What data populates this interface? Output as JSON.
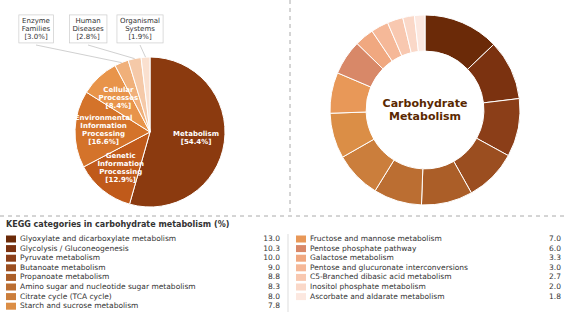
{
  "chart_data": [
    {
      "type": "pie",
      "categories": [
        "Metabolism",
        "Genetic\nInformation\nProcessing",
        "Environmental\nInformation\nProcessing",
        "Cellular\nProcesses",
        "Enzyme\nFamilies",
        "Human\nDiseases",
        "Organismal\nSystems"
      ],
      "values": [
        54.4,
        12.9,
        16.6,
        8.4,
        3.0,
        2.8,
        1.9
      ],
      "value_labels": [
        "[54.4%]",
        "[12.9%]",
        "[16.6%]",
        "[8.4%]",
        "[3.0%]",
        "[2.8%]",
        "[1.9%]"
      ],
      "colors": [
        "#8B3A0F",
        "#C05A1A",
        "#D4732A",
        "#E8944A",
        "#F0B07A",
        "#F5C9A8",
        "#FAE0CF"
      ],
      "data_labels": true
    },
    {
      "type": "donut",
      "title": "Carbohydrate\nMetabolism",
      "subtitle": "KEGG categories in carbohydrate metabolism (%)",
      "categories": [
        "Glyoxylate and dicarboxylate metabolism",
        "Glycolysis / Gluconeogenesis",
        "Pyruvate metabolism",
        "Butanoate metabolism",
        "Propanoate metabolism",
        "Amino sugar and nucleotide sugar metabolism",
        "Citrate cycle (TCA cycle)",
        "Starch and sucrose metabolism",
        "Fructose and mannose metabolism",
        "Pentose phosphate pathway",
        "Galactose metabolism",
        "Pentose and glucuronate interconversions",
        "C5-Branched dibasic acid metabolism",
        "Inositol phosphate metabolism",
        "Ascorbate and aldarate metabolism"
      ],
      "values": [
        13.0,
        10.3,
        10.0,
        9.0,
        8.8,
        8.3,
        8.0,
        7.8,
        7.0,
        6.0,
        3.3,
        3.0,
        2.7,
        2.0,
        1.8
      ],
      "value_labels": [
        "13.0",
        "10.3",
        "10.0",
        "9.0",
        "8.8",
        "8.3",
        "8.0",
        "7.8",
        "7.0",
        "6.0",
        "3.3",
        "3.0",
        "2.7",
        "2.0",
        "1.8"
      ],
      "colors": [
        "#6B2A08",
        "#7B3210",
        "#8B3E18",
        "#9B4E20",
        "#AB5E28",
        "#BB6E32",
        "#CB7E3C",
        "#DB8E46",
        "#E89858",
        "#D88868",
        "#F0A880",
        "#F5B898",
        "#F8C8B0",
        "#FAD8C8",
        "#FCE8E0"
      ],
      "legend": "bottom",
      "data_labels": true
    }
  ]
}
